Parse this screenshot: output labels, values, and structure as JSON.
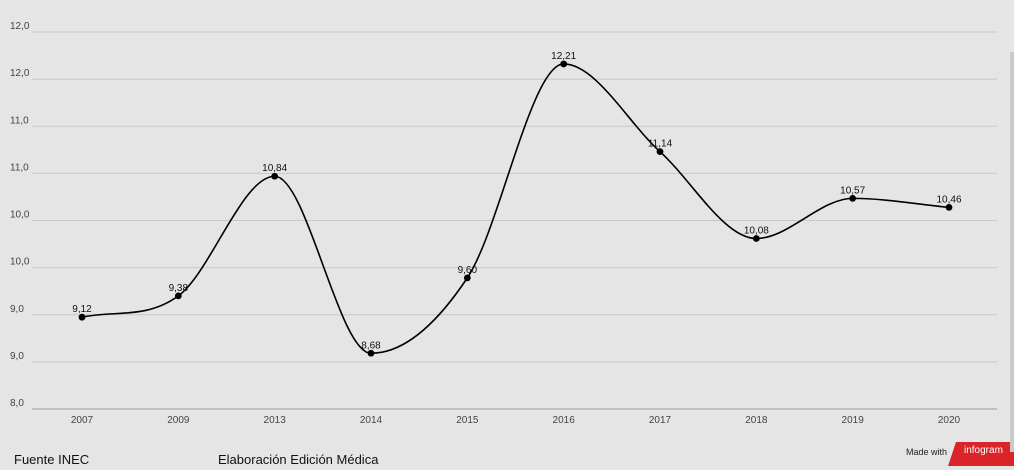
{
  "chart_data": {
    "type": "line",
    "categories": [
      "2007",
      "2009",
      "2013",
      "2014",
      "2015",
      "2016",
      "2017",
      "2018",
      "2019",
      "2020"
    ],
    "values": [
      9.12,
      9.38,
      10.84,
      8.68,
      9.6,
      12.21,
      11.14,
      10.08,
      10.57,
      10.46
    ],
    "data_labels": [
      "9,12",
      "9,38",
      "10,84",
      "8,68",
      "9,60",
      "12,21",
      "11,14",
      "10,08",
      "10,57",
      "10,46"
    ],
    "y_tick_labels": [
      "12,0",
      "12,0",
      "11,0",
      "11,0",
      "10,0",
      "10,0",
      "9,0",
      "9,0",
      "8,0"
    ],
    "ylim": [
      8.0,
      12.6
    ],
    "grid": true,
    "line_color": "#000000"
  },
  "footer": {
    "source": "Fuente INEC",
    "credit": "Elaboración Edición Médica",
    "made_with": "Made with",
    "brand": "infogram",
    "brand_color": "#d9252a"
  }
}
